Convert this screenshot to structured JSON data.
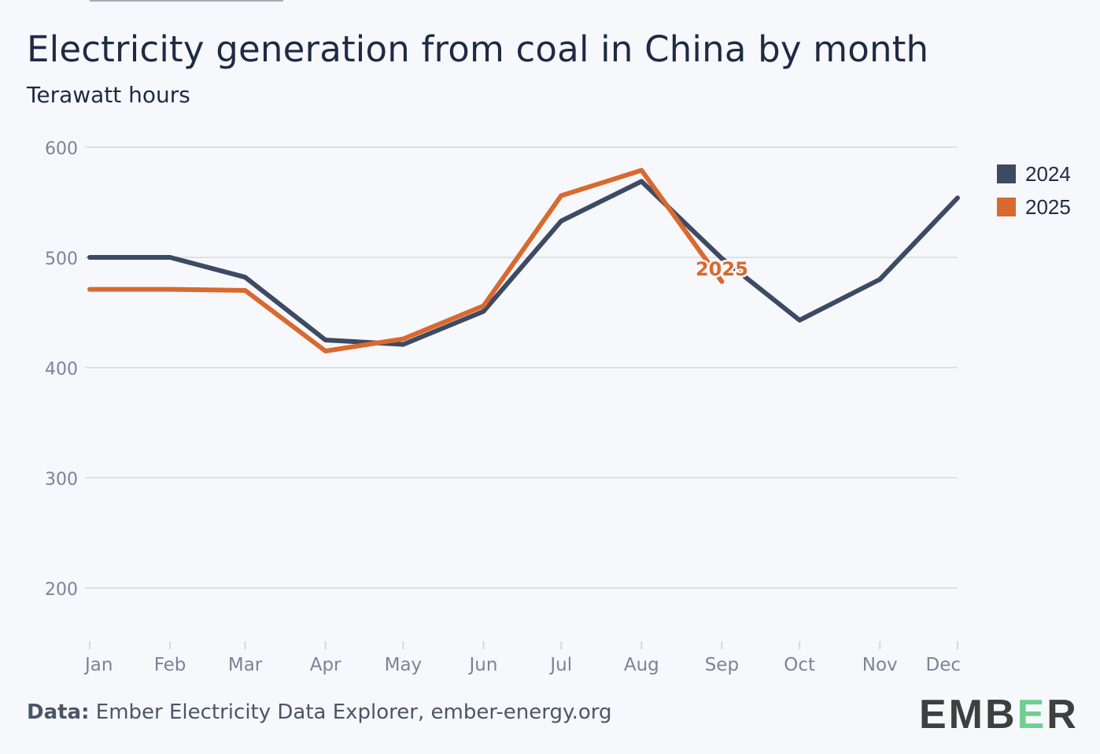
{
  "header": {
    "title": "Electricity generation from coal in China by month",
    "subtitle": "Terawatt hours"
  },
  "footer": {
    "source_label": "Data:",
    "source_text": "Ember Electricity Data Explorer, ember-energy.org",
    "logo": {
      "part1": "EMB",
      "accent": "E",
      "part2": "R",
      "accent_color": "#6fcf8f"
    }
  },
  "chart_data": {
    "type": "line",
    "title": "Electricity generation from coal in China by month",
    "subtitle": "Terawatt hours",
    "xlabel": "",
    "ylabel": "Terawatt hours",
    "categories": [
      "Jan",
      "Feb",
      "Mar",
      "Apr",
      "May",
      "Jun",
      "Jul",
      "Aug",
      "Sep",
      "Oct",
      "Nov",
      "Dec"
    ],
    "ylim": [
      150,
      600
    ],
    "yticks": [
      200,
      300,
      400,
      500,
      600
    ],
    "grid": true,
    "legend_position": "right",
    "series": [
      {
        "name": "2024",
        "color": "#3d4a63",
        "values": [
          500,
          500,
          482,
          425,
          421,
          451,
          533,
          569,
          499,
          443,
          480,
          554
        ]
      },
      {
        "name": "2025",
        "color": "#d9692f",
        "values": [
          471,
          471,
          470,
          415,
          426,
          456,
          556,
          579,
          478
        ],
        "end_label": "2025"
      }
    ]
  }
}
